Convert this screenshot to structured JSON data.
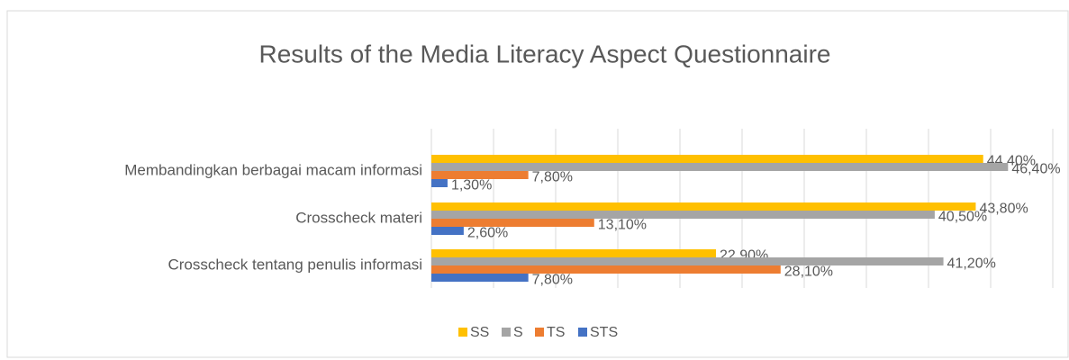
{
  "chart_data": {
    "type": "hbar",
    "title": "Results of the Media Literacy Aspect Questionnaire",
    "categories": [
      "Membandingkan berbagai macam informasi",
      "Crosscheck materi ",
      "Crosscheck tentang penulis informasi"
    ],
    "series": [
      {
        "name": "SS",
        "color": "#FFC000",
        "values": [
          44.4,
          43.8,
          22.9
        ],
        "value_labels": [
          "44,40%",
          "43,80%",
          "22,90%"
        ]
      },
      {
        "name": "S",
        "color": "#A5A5A5",
        "values": [
          46.4,
          40.5,
          41.2
        ],
        "value_labels": [
          "46,40%",
          "40,50%",
          "41,20%"
        ]
      },
      {
        "name": "TS",
        "color": "#ED7D31",
        "values": [
          7.8,
          13.1,
          28.1
        ],
        "value_labels": [
          "7,80%",
          "13,10%",
          "28,10%"
        ]
      },
      {
        "name": "STS",
        "color": "#4472C4",
        "values": [
          1.3,
          2.6,
          7.8
        ],
        "value_labels": [
          "1,30%",
          "2,60%",
          "7,80%"
        ]
      }
    ],
    "xlim": [
      0,
      50
    ],
    "xticks": [
      0,
      5,
      10,
      15,
      20,
      25,
      30,
      35,
      40,
      45,
      50
    ],
    "grid": true,
    "legend": "bottom"
  }
}
